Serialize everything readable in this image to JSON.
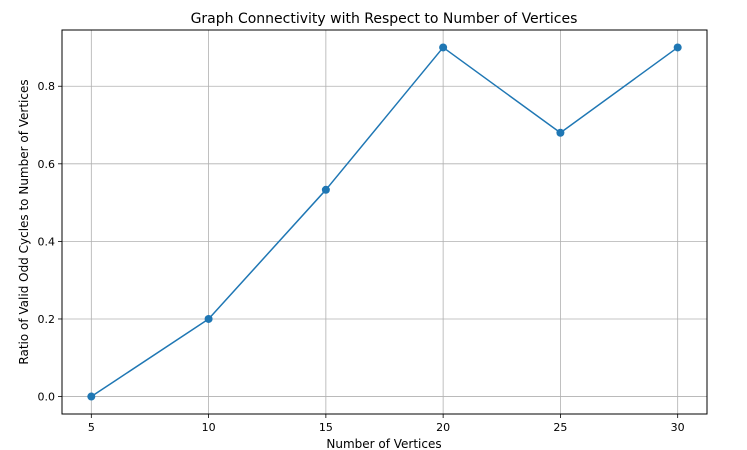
{
  "chart_data": {
    "type": "line",
    "title": "Graph Connectivity with Respect to Number of Vertices",
    "xlabel": "Number of Vertices",
    "ylabel": "Ratio of Valid Odd Cycles to Number of Vertices",
    "x": [
      5,
      10,
      15,
      20,
      25,
      30
    ],
    "series": [
      {
        "values": [
          0.0,
          0.2,
          0.533,
          0.9,
          0.68,
          0.9
        ],
        "color": "#1f77b4",
        "marker": "circle"
      }
    ],
    "xticks": [
      5,
      10,
      15,
      20,
      25,
      30
    ],
    "xtick_labels": [
      "5",
      "10",
      "15",
      "20",
      "25",
      "30"
    ],
    "yticks": [
      0.0,
      0.2,
      0.4,
      0.6,
      0.8
    ],
    "ytick_labels": [
      "0.0",
      "0.2",
      "0.4",
      "0.6",
      "0.8"
    ],
    "xlim": [
      3.75,
      31.25
    ],
    "ylim": [
      -0.045,
      0.945
    ],
    "grid": true
  }
}
